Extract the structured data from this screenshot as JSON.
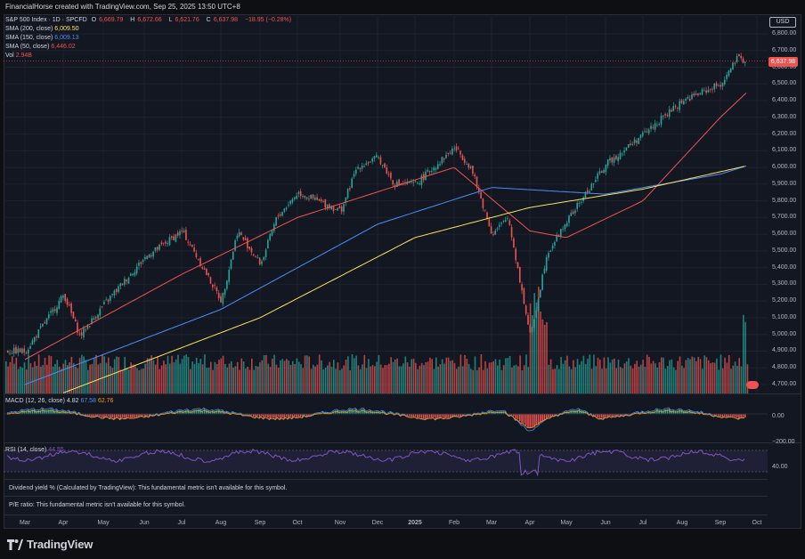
{
  "header": {
    "credit": "FinancialHorse created with TradingView.com, Sep 25, 2025 13:50 UTC+8"
  },
  "symbol": {
    "title": "S&P 500 Index · 1D · SPCFD",
    "open_label": "O",
    "open": "6,669.79",
    "high_label": "H",
    "high": "6,672.66",
    "low_label": "L",
    "low": "6,621.76",
    "close_label": "C",
    "close": "6,637.98",
    "change": "−18.95 (−0.28%)"
  },
  "indicators": {
    "sma200": {
      "label": "SMA (200, close)",
      "value": "6,009.50",
      "color": "#f7e25c"
    },
    "sma150": {
      "label": "SMA (150, close)",
      "value": "6,009.13",
      "color": "#4c8df6"
    },
    "sma50": {
      "label": "SMA (50, close)",
      "value": "6,446.02",
      "color": "#ef5350"
    },
    "vol": {
      "label": "Vol",
      "value": "2.94B"
    },
    "macd": {
      "label": "MACD (12, 26, close)",
      "v1": "4.82",
      "v2": "67.58",
      "v3": "62.76"
    },
    "rsi": {
      "label": "RSI (14, close)",
      "value": "44.55"
    }
  },
  "price_axis": {
    "currency": "USD",
    "last_price": "6,637.98",
    "ticks": [
      "6,800.00",
      "6,700.00",
      "6,600.00",
      "6,500.00",
      "6,400.00",
      "6,300.00",
      "6,200.00",
      "6,100.00",
      "6,000.00",
      "5,900.00",
      "5,800.00",
      "5,700.00",
      "5,600.00",
      "5,500.00",
      "5,400.00",
      "5,300.00",
      "5,200.00",
      "5,100.00",
      "5,000.00",
      "4,900.00",
      "4,800.00",
      "4,700.00"
    ],
    "macd_ticks": [
      "0.00",
      "−200.00"
    ],
    "rsi_ticks": [
      "40.00"
    ]
  },
  "fundamentals": {
    "dividend": "Dividend yield % (Calculated by TradingView): This fundamental metric isn't available for this symbol.",
    "pe": "P/E ratio: This fundamental metric isn't available for this symbol."
  },
  "time_axis": [
    "Mar",
    "Apr",
    "May",
    "Jun",
    "Jul",
    "Aug",
    "Sep",
    "Oct",
    "Nov",
    "Dec",
    "2025",
    "Feb",
    "Mar",
    "Apr",
    "May",
    "Jun",
    "Jul",
    "Aug",
    "Sep",
    "Oct"
  ],
  "branding": {
    "logo_text": "TradingView"
  },
  "colors": {
    "up": "#26a69a",
    "down": "#ef5350",
    "sma50": "#ef5350",
    "sma150": "#4c8df6",
    "sma200": "#f7e25c",
    "rsi": "#7e57c2"
  },
  "chart_data": {
    "type": "candlestick",
    "price_range": [
      4650,
      6850
    ],
    "close_points": [
      [
        "Mar",
        4900
      ],
      [
        "Apr",
        5240
      ],
      [
        "Apr",
        4990
      ],
      [
        "May",
        5180
      ],
      [
        "Jun",
        5460
      ],
      [
        "Jul",
        5620
      ],
      [
        "Aug",
        5200
      ],
      [
        "Aug",
        5620
      ],
      [
        "Sep",
        5420
      ],
      [
        "Sep",
        5700
      ],
      [
        "Oct",
        5850
      ],
      [
        "Nov",
        5740
      ],
      [
        "Nov",
        6000
      ],
      [
        "Dec",
        6060
      ],
      [
        "Dec",
        5900
      ],
      [
        "2025",
        5900
      ],
      [
        "Feb",
        6120
      ],
      [
        "Feb",
        6000
      ],
      [
        "Mar",
        5600
      ],
      [
        "Mar",
        5700
      ],
      [
        "Apr",
        4980
      ],
      [
        "Apr",
        5480
      ],
      [
        "May",
        5680
      ],
      [
        "Jun",
        6020
      ],
      [
        "Jul",
        6200
      ],
      [
        "Aug",
        6400
      ],
      [
        "Sep",
        6500
      ],
      [
        "Sep",
        6650
      ],
      [
        "Oct",
        6638
      ]
    ],
    "sma50": [
      [
        "Mar",
        4850
      ],
      [
        "Jul",
        5360
      ],
      [
        "Oct",
        5700
      ],
      [
        "Feb",
        6000
      ],
      [
        "Apr",
        5620
      ],
      [
        "May",
        5580
      ],
      [
        "Jul",
        5800
      ],
      [
        "Sep",
        6300
      ],
      [
        "Oct",
        6446
      ]
    ],
    "sma150": [
      [
        "Mar",
        4700
      ],
      [
        "Aug",
        5150
      ],
      [
        "Dec",
        5660
      ],
      [
        "Mar",
        5880
      ],
      [
        "Jun",
        5840
      ],
      [
        "Sep",
        5960
      ],
      [
        "Oct",
        6009
      ]
    ],
    "sma200": [
      [
        "Apr",
        4650
      ],
      [
        "Sep",
        5100
      ],
      [
        "Jan",
        5580
      ],
      [
        "Apr",
        5760
      ],
      [
        "Jul",
        5870
      ],
      [
        "Oct",
        6009
      ]
    ]
  }
}
